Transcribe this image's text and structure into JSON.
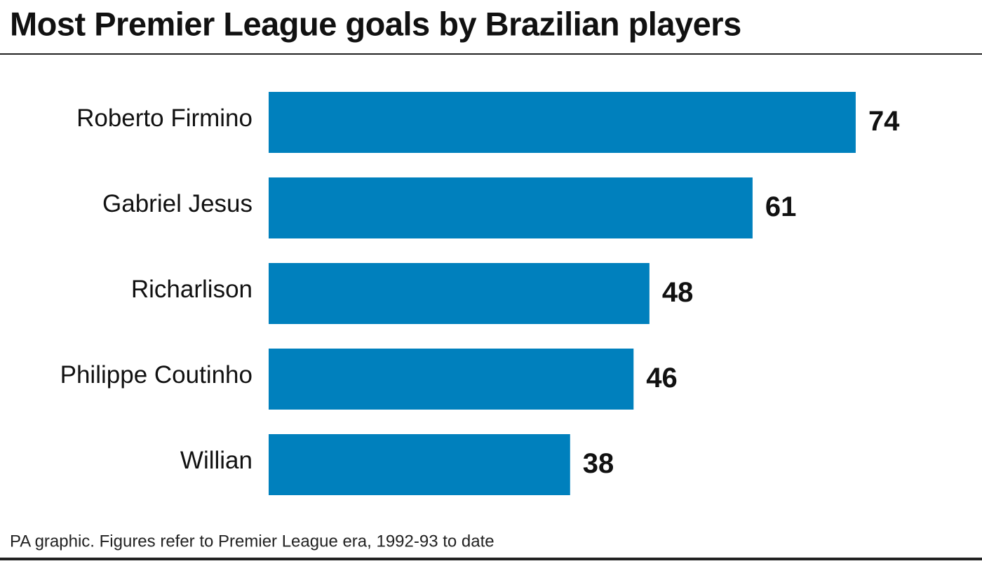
{
  "chart_data": {
    "type": "bar",
    "orientation": "horizontal",
    "title": "Most Premier League goals by Brazilian players",
    "categories": [
      "Roberto Firmino",
      "Gabriel Jesus",
      "Richarlison",
      "Philippe Coutinho",
      "Willian"
    ],
    "values": [
      74,
      61,
      48,
      46,
      38
    ],
    "color": "#0080bd",
    "footnote": "PA graphic. Figures refer to Premier League era, 1992-93 to date"
  }
}
